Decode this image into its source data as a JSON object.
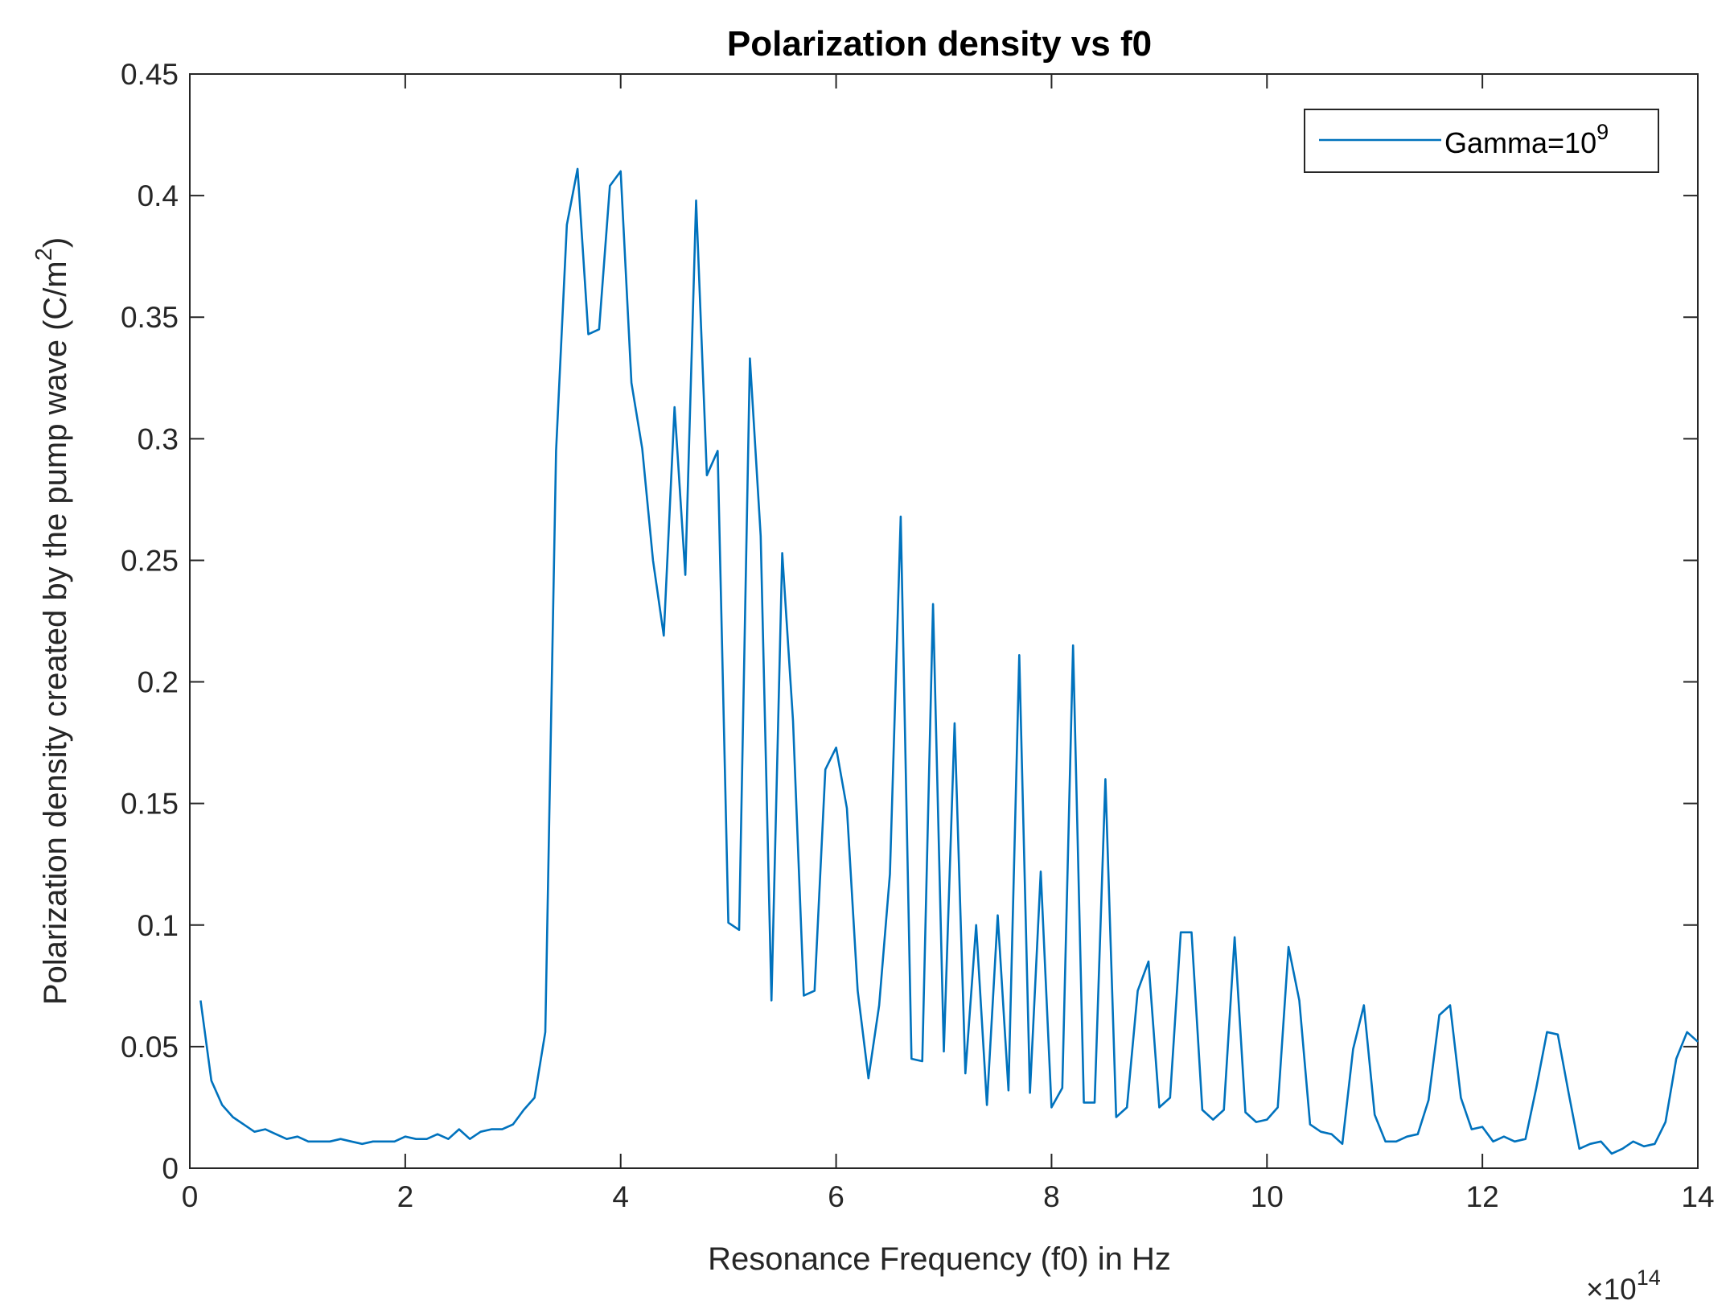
{
  "chart_data": {
    "type": "line",
    "title": "Polarization density vs f0",
    "xlabel": "Resonance Frequency (f0) in Hz",
    "ylabel_main": "Polarization density created by the pump wave (C/m",
    "ylabel_sup": "2",
    "ylabel_end": ")",
    "x_multiplier": {
      "base": "×10",
      "exp": "14"
    },
    "xlim": [
      0,
      14
    ],
    "ylim": [
      0,
      0.45
    ],
    "xticks": [
      0,
      2,
      4,
      6,
      8,
      10,
      12,
      14
    ],
    "xtick_labels": [
      "0",
      "2",
      "4",
      "6",
      "8",
      "10",
      "12",
      "14"
    ],
    "yticks": [
      0,
      0.05,
      0.1,
      0.15,
      0.2,
      0.25,
      0.3,
      0.35,
      0.4,
      0.45
    ],
    "ytick_labels": [
      "0",
      "0.05",
      "0.1",
      "0.15",
      "0.2",
      "0.25",
      "0.3",
      "0.35",
      "0.4",
      "0.45"
    ],
    "grid": false,
    "legend": {
      "position": "top-right",
      "label": "Gamma=10",
      "label_sup": "9"
    },
    "series": [
      {
        "name": "Gamma=10^9",
        "color": "#0072BD",
        "x": [
          0.1,
          0.2,
          0.3,
          0.4,
          0.5,
          0.6,
          0.7,
          0.8,
          0.9,
          1.0,
          1.1,
          1.2,
          1.3,
          1.4,
          1.5,
          1.6,
          1.7,
          1.8,
          1.9,
          2.0,
          2.1,
          2.2,
          2.3,
          2.4,
          2.5,
          2.6,
          2.7,
          2.8,
          2.9,
          3.0,
          3.1,
          3.2,
          3.3,
          3.4,
          3.5,
          3.6,
          3.7,
          3.8,
          3.9,
          4.0,
          4.1,
          4.2,
          4.3,
          4.4,
          4.5,
          4.6,
          4.7,
          4.8,
          4.9,
          5.0,
          5.1,
          5.2,
          5.3,
          5.4,
          5.5,
          5.6,
          5.7,
          5.8,
          5.9,
          6.0,
          6.1,
          6.2,
          6.3,
          6.4,
          6.5,
          6.6,
          6.7,
          6.8,
          6.9,
          7.0,
          7.1,
          7.2,
          7.3,
          7.4,
          7.5,
          7.6,
          7.7,
          7.8,
          7.9,
          8.0,
          8.1,
          8.2,
          8.3,
          8.4,
          8.5,
          8.6,
          8.7,
          8.8,
          8.9,
          9.0,
          9.1,
          9.2,
          9.3,
          9.4,
          9.5,
          9.6,
          9.7,
          9.8,
          9.9,
          10.0,
          10.1,
          10.2,
          10.3,
          10.4,
          10.5,
          10.6,
          10.7,
          10.8,
          10.9,
          11.0,
          11.1,
          11.2,
          11.3,
          11.4,
          11.5,
          11.6,
          11.7,
          11.8,
          11.9,
          12.0,
          12.1,
          12.2,
          12.3,
          12.4,
          12.5,
          12.6,
          12.7,
          12.8,
          12.9,
          13.0,
          13.1,
          13.2,
          13.3,
          13.4,
          13.5,
          13.6,
          13.7,
          13.8,
          13.9,
          14.0
        ],
        "y": [
          0.069,
          0.036,
          0.026,
          0.021,
          0.018,
          0.015,
          0.016,
          0.014,
          0.012,
          0.013,
          0.011,
          0.011,
          0.011,
          0.012,
          0.011,
          0.01,
          0.011,
          0.011,
          0.011,
          0.013,
          0.012,
          0.012,
          0.014,
          0.012,
          0.016,
          0.012,
          0.015,
          0.016,
          0.016,
          0.018,
          0.024,
          0.029,
          0.056,
          0.295,
          0.388,
          0.411,
          0.343,
          0.345,
          0.404,
          0.41,
          0.323,
          0.296,
          0.25,
          0.219,
          0.313,
          0.244,
          0.398,
          0.285,
          0.295,
          0.101,
          0.098,
          0.333,
          0.26,
          0.069,
          0.253,
          0.184,
          0.071,
          0.073,
          0.164,
          0.173,
          0.148,
          0.073,
          0.037,
          0.067,
          0.121,
          0.268,
          0.045,
          0.044,
          0.232,
          0.048,
          0.183,
          0.039,
          0.1,
          0.026,
          0.104,
          0.032,
          0.211,
          0.031,
          0.122,
          0.025,
          0.033,
          0.215,
          0.027,
          0.027,
          0.16,
          0.021,
          0.025,
          0.073,
          0.085,
          0.025,
          0.029,
          0.097,
          0.097,
          0.024,
          0.02,
          0.024,
          0.095,
          0.023,
          0.019,
          0.02,
          0.025,
          0.091,
          0.069,
          0.018,
          0.015,
          0.014,
          0.01,
          0.049,
          0.067,
          0.022,
          0.011,
          0.011,
          0.013,
          0.014,
          0.028,
          0.063,
          0.067,
          0.029,
          0.016,
          0.017,
          0.011,
          0.013,
          0.011,
          0.012,
          0.033,
          0.056,
          0.055,
          0.031,
          0.008,
          0.01,
          0.011,
          0.006,
          0.008,
          0.011,
          0.009,
          0.01,
          0.019,
          0.045,
          0.056,
          0.052
        ]
      }
    ]
  }
}
